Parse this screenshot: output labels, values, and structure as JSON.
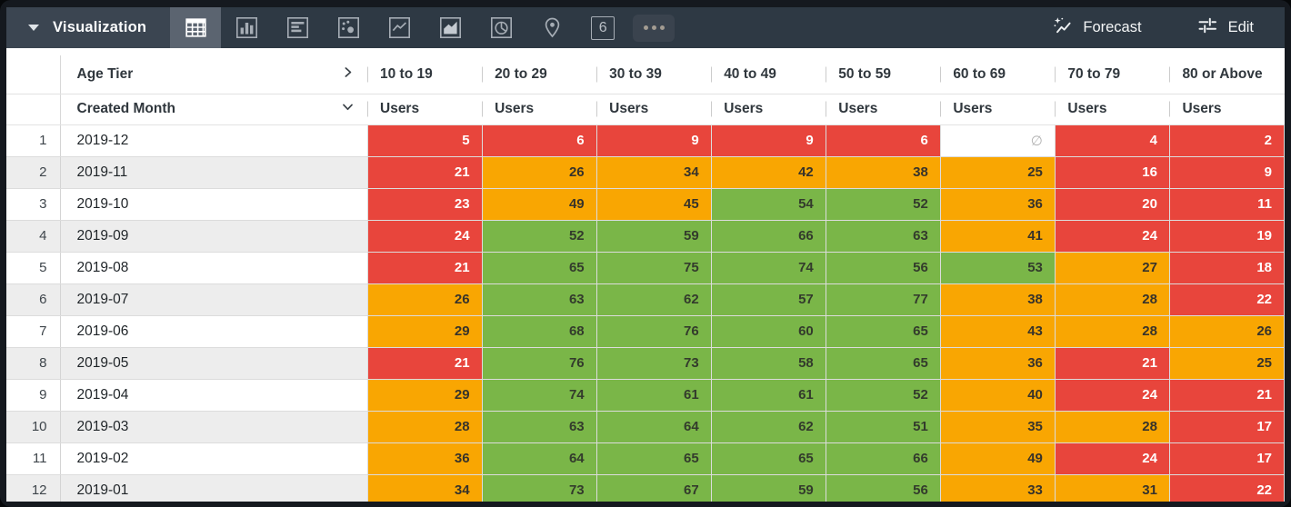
{
  "toolbar": {
    "title": "Visualization",
    "forecast_label": "Forecast",
    "edit_label": "Edit",
    "single_value_glyph": "6",
    "vis_types": [
      {
        "name": "table",
        "selected": true
      },
      {
        "name": "column-chart",
        "selected": false
      },
      {
        "name": "bar-chart",
        "selected": false
      },
      {
        "name": "scatter-plot",
        "selected": false
      },
      {
        "name": "line-chart",
        "selected": false
      },
      {
        "name": "area-chart",
        "selected": false
      },
      {
        "name": "pie-chart",
        "selected": false
      },
      {
        "name": "map",
        "selected": false
      },
      {
        "name": "single-value",
        "selected": false
      },
      {
        "name": "more-options",
        "selected": false
      }
    ]
  },
  "colors": {
    "red": "#e8453c",
    "orange": "#f9a602",
    "green": "#7ab648",
    "toolbar_bg": "#2e3944",
    "selected_tab_bg": "#5b6470"
  },
  "table": {
    "pivot_field": "Age Tier",
    "row_field": "Created Month",
    "measure": "Users",
    "null_symbol": "∅",
    "age_tiers": [
      "10 to 19",
      "20 to 29",
      "30 to 39",
      "40 to 49",
      "50 to 59",
      "60 to 69",
      "70 to 79",
      "80 or Above"
    ],
    "rows": [
      {
        "num": "1",
        "month": "2019-12",
        "cells": [
          {
            "v": "5",
            "c": "red"
          },
          {
            "v": "6",
            "c": "red"
          },
          {
            "v": "9",
            "c": "red"
          },
          {
            "v": "9",
            "c": "red"
          },
          {
            "v": "6",
            "c": "red"
          },
          {
            "v": null,
            "c": "null"
          },
          {
            "v": "4",
            "c": "red"
          },
          {
            "v": "2",
            "c": "red"
          }
        ]
      },
      {
        "num": "2",
        "month": "2019-11",
        "cells": [
          {
            "v": "21",
            "c": "red"
          },
          {
            "v": "26",
            "c": "orange"
          },
          {
            "v": "34",
            "c": "orange"
          },
          {
            "v": "42",
            "c": "orange"
          },
          {
            "v": "38",
            "c": "orange"
          },
          {
            "v": "25",
            "c": "orange"
          },
          {
            "v": "16",
            "c": "red"
          },
          {
            "v": "9",
            "c": "red"
          }
        ]
      },
      {
        "num": "3",
        "month": "2019-10",
        "cells": [
          {
            "v": "23",
            "c": "red"
          },
          {
            "v": "49",
            "c": "orange"
          },
          {
            "v": "45",
            "c": "orange"
          },
          {
            "v": "54",
            "c": "green"
          },
          {
            "v": "52",
            "c": "green"
          },
          {
            "v": "36",
            "c": "orange"
          },
          {
            "v": "20",
            "c": "red"
          },
          {
            "v": "11",
            "c": "red"
          }
        ]
      },
      {
        "num": "4",
        "month": "2019-09",
        "cells": [
          {
            "v": "24",
            "c": "red"
          },
          {
            "v": "52",
            "c": "green"
          },
          {
            "v": "59",
            "c": "green"
          },
          {
            "v": "66",
            "c": "green"
          },
          {
            "v": "63",
            "c": "green"
          },
          {
            "v": "41",
            "c": "orange"
          },
          {
            "v": "24",
            "c": "red"
          },
          {
            "v": "19",
            "c": "red"
          }
        ]
      },
      {
        "num": "5",
        "month": "2019-08",
        "cells": [
          {
            "v": "21",
            "c": "red"
          },
          {
            "v": "65",
            "c": "green"
          },
          {
            "v": "75",
            "c": "green"
          },
          {
            "v": "74",
            "c": "green"
          },
          {
            "v": "56",
            "c": "green"
          },
          {
            "v": "53",
            "c": "green"
          },
          {
            "v": "27",
            "c": "orange"
          },
          {
            "v": "18",
            "c": "red"
          }
        ]
      },
      {
        "num": "6",
        "month": "2019-07",
        "cells": [
          {
            "v": "26",
            "c": "orange"
          },
          {
            "v": "63",
            "c": "green"
          },
          {
            "v": "62",
            "c": "green"
          },
          {
            "v": "57",
            "c": "green"
          },
          {
            "v": "77",
            "c": "green"
          },
          {
            "v": "38",
            "c": "orange"
          },
          {
            "v": "28",
            "c": "orange"
          },
          {
            "v": "22",
            "c": "red"
          }
        ]
      },
      {
        "num": "7",
        "month": "2019-06",
        "cells": [
          {
            "v": "29",
            "c": "orange"
          },
          {
            "v": "68",
            "c": "green"
          },
          {
            "v": "76",
            "c": "green"
          },
          {
            "v": "60",
            "c": "green"
          },
          {
            "v": "65",
            "c": "green"
          },
          {
            "v": "43",
            "c": "orange"
          },
          {
            "v": "28",
            "c": "orange"
          },
          {
            "v": "26",
            "c": "orange"
          }
        ]
      },
      {
        "num": "8",
        "month": "2019-05",
        "cells": [
          {
            "v": "21",
            "c": "red"
          },
          {
            "v": "76",
            "c": "green"
          },
          {
            "v": "73",
            "c": "green"
          },
          {
            "v": "58",
            "c": "green"
          },
          {
            "v": "65",
            "c": "green"
          },
          {
            "v": "36",
            "c": "orange"
          },
          {
            "v": "21",
            "c": "red"
          },
          {
            "v": "25",
            "c": "orange"
          }
        ]
      },
      {
        "num": "9",
        "month": "2019-04",
        "cells": [
          {
            "v": "29",
            "c": "orange"
          },
          {
            "v": "74",
            "c": "green"
          },
          {
            "v": "61",
            "c": "green"
          },
          {
            "v": "61",
            "c": "green"
          },
          {
            "v": "52",
            "c": "green"
          },
          {
            "v": "40",
            "c": "orange"
          },
          {
            "v": "24",
            "c": "red"
          },
          {
            "v": "21",
            "c": "red"
          }
        ]
      },
      {
        "num": "10",
        "month": "2019-03",
        "cells": [
          {
            "v": "28",
            "c": "orange"
          },
          {
            "v": "63",
            "c": "green"
          },
          {
            "v": "64",
            "c": "green"
          },
          {
            "v": "62",
            "c": "green"
          },
          {
            "v": "51",
            "c": "green"
          },
          {
            "v": "35",
            "c": "orange"
          },
          {
            "v": "28",
            "c": "orange"
          },
          {
            "v": "17",
            "c": "red"
          }
        ]
      },
      {
        "num": "11",
        "month": "2019-02",
        "cells": [
          {
            "v": "36",
            "c": "orange"
          },
          {
            "v": "64",
            "c": "green"
          },
          {
            "v": "65",
            "c": "green"
          },
          {
            "v": "65",
            "c": "green"
          },
          {
            "v": "66",
            "c": "green"
          },
          {
            "v": "49",
            "c": "orange"
          },
          {
            "v": "24",
            "c": "red"
          },
          {
            "v": "17",
            "c": "red"
          }
        ]
      },
      {
        "num": "12",
        "month": "2019-01",
        "cells": [
          {
            "v": "34",
            "c": "orange"
          },
          {
            "v": "73",
            "c": "green"
          },
          {
            "v": "67",
            "c": "green"
          },
          {
            "v": "59",
            "c": "green"
          },
          {
            "v": "56",
            "c": "green"
          },
          {
            "v": "33",
            "c": "orange"
          },
          {
            "v": "31",
            "c": "orange"
          },
          {
            "v": "22",
            "c": "red"
          }
        ]
      }
    ]
  }
}
